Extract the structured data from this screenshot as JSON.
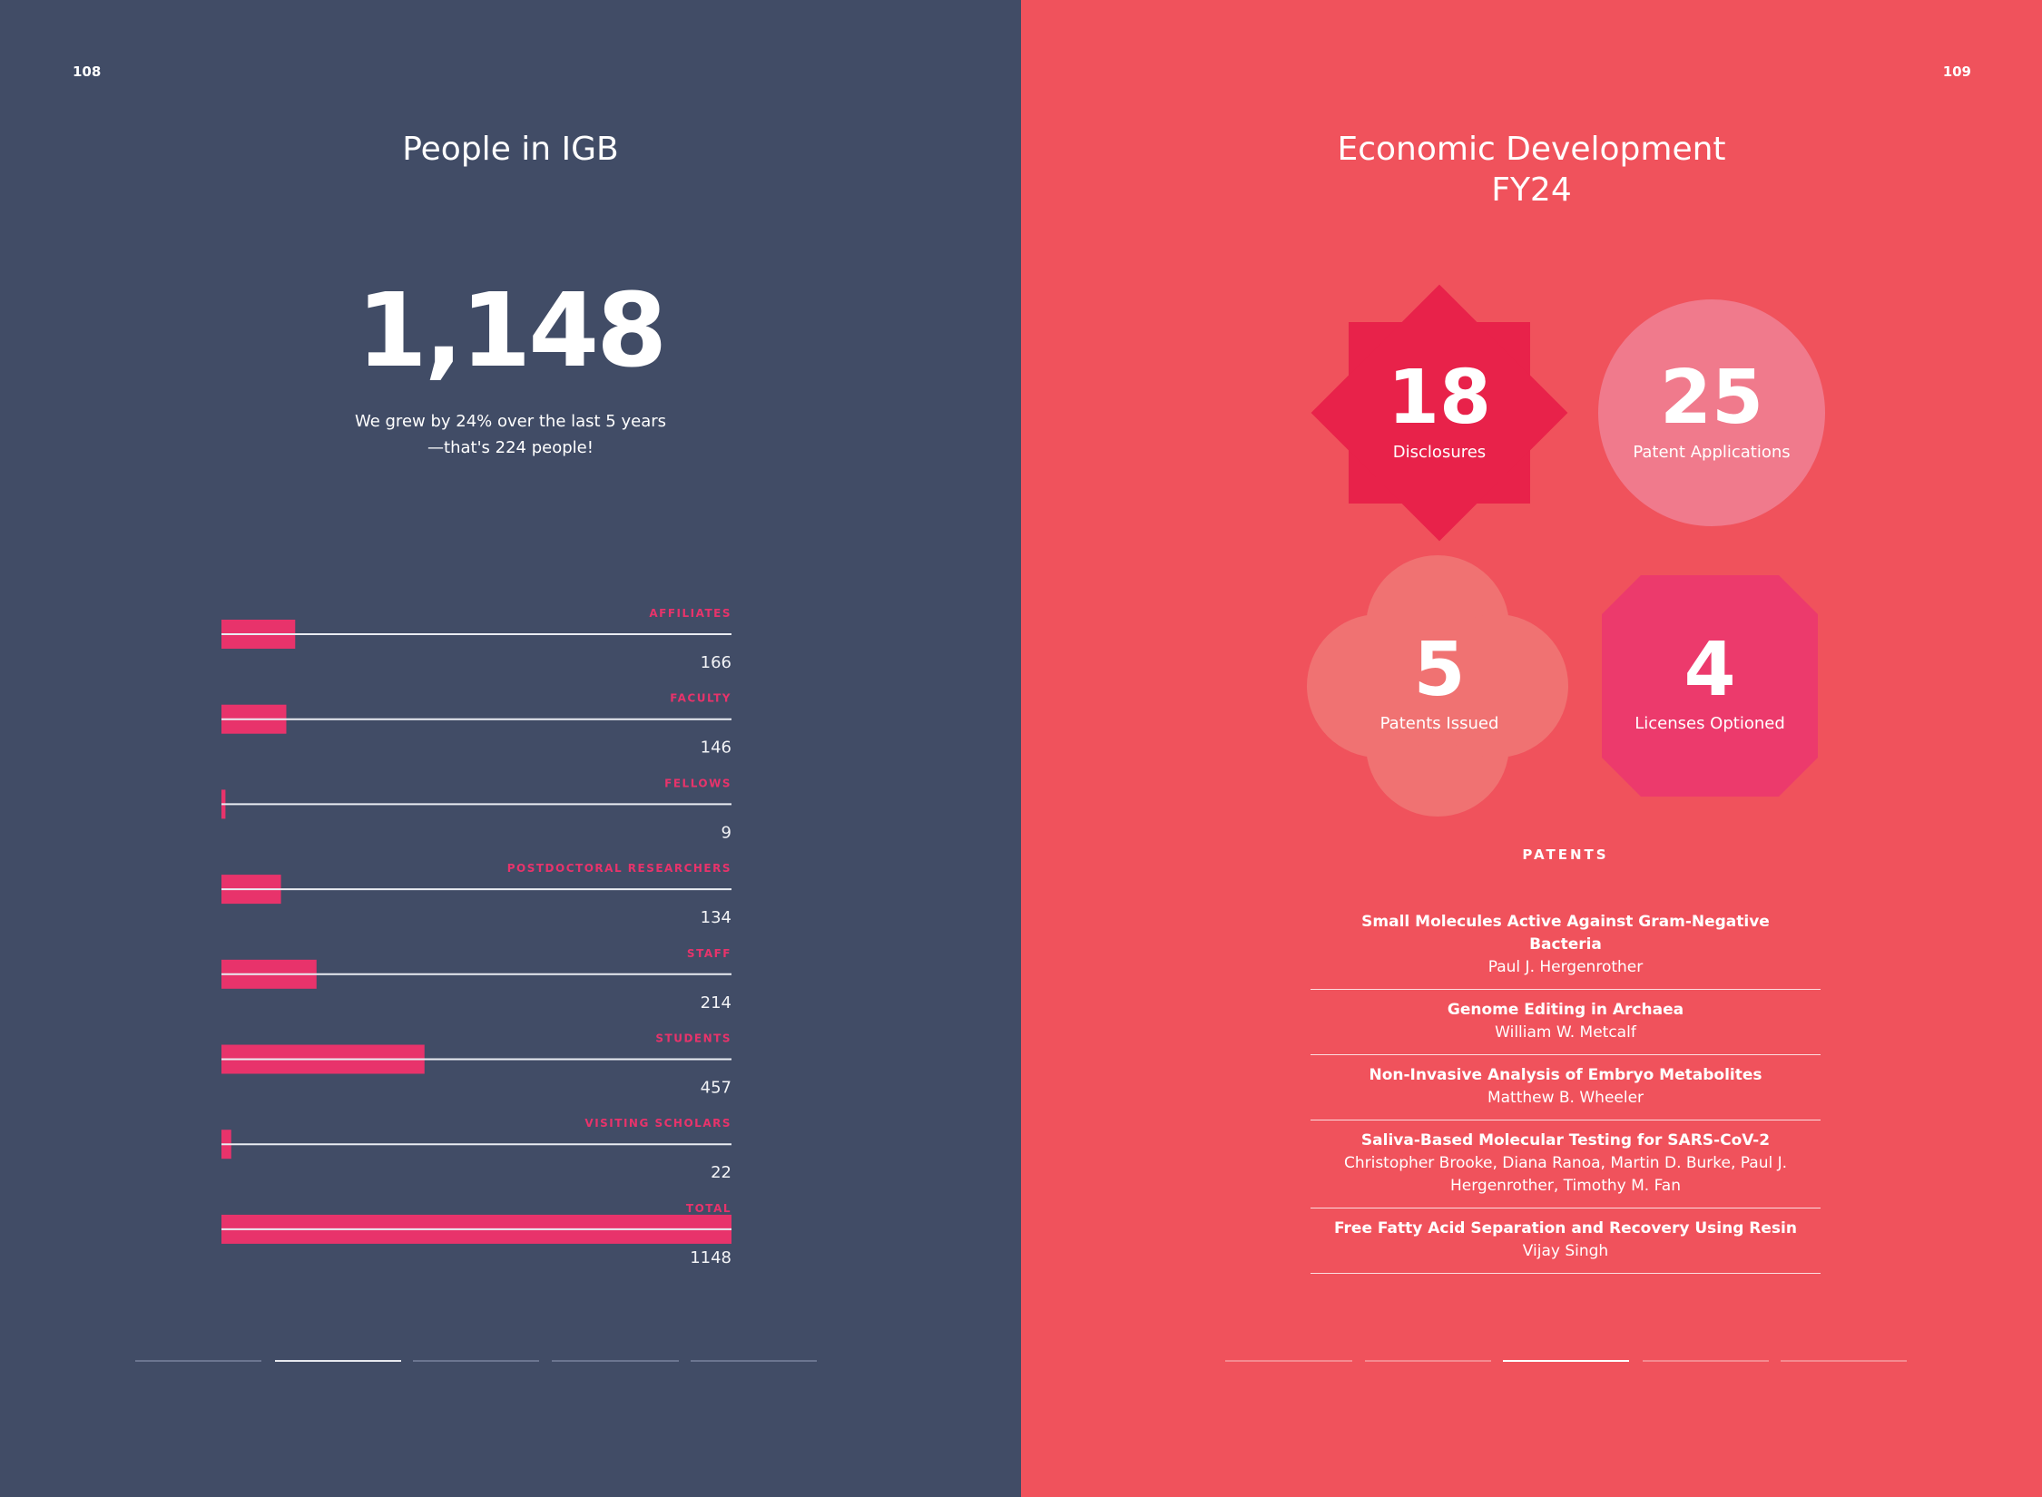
{
  "left_page": {
    "page_number": "108",
    "title": "People in IGB",
    "headline": "1,148",
    "subtitle": [
      "We grew by 24% over the last 5 years",
      "—that's 224 people!"
    ]
  },
  "chart_data": {
    "type": "bar",
    "orientation": "horizontal",
    "categories": [
      "AFFILIATES",
      "FACULTY",
      "FELLOWS",
      "POSTDOCTORAL RESEARCHERS",
      "STAFF",
      "STUDENTS",
      "VISITING SCHOLARS",
      "TOTAL"
    ],
    "values": [
      166,
      146,
      9,
      134,
      214,
      457,
      22,
      1148
    ],
    "color": "#e8336b"
  },
  "right_page": {
    "page_number": "109",
    "title": [
      "Economic Development",
      "FY24"
    ],
    "stats": [
      {
        "value": "18",
        "label": "Disclosures"
      },
      {
        "value": "25",
        "label": "Patent Applications"
      },
      {
        "value": "5",
        "label": "Patents Issued"
      },
      {
        "value": "4",
        "label": "Licenses Optioned"
      }
    ],
    "patents_heading": "PATENTS",
    "patents": [
      {
        "title": "Small Molecules Active Against Gram-Negative Bacteria",
        "inventors": "Paul J. Hergenrother"
      },
      {
        "title": "Genome Editing in Archaea",
        "inventors": "William W. Metcalf"
      },
      {
        "title": "Non-Invasive Analysis of Embryo Metabolites",
        "inventors": "Matthew B. Wheeler"
      },
      {
        "title": "Saliva-Based Molecular Testing for SARS-CoV-2",
        "inventors": "Christopher Brooke, Diana Ranoa, Martin D. Burke, Paul J. Hergenrother, Timothy M. Fan"
      },
      {
        "title": "Free Fatty Acid Separation and Recovery Using Resin",
        "inventors": "Vijay Singh"
      }
    ]
  }
}
